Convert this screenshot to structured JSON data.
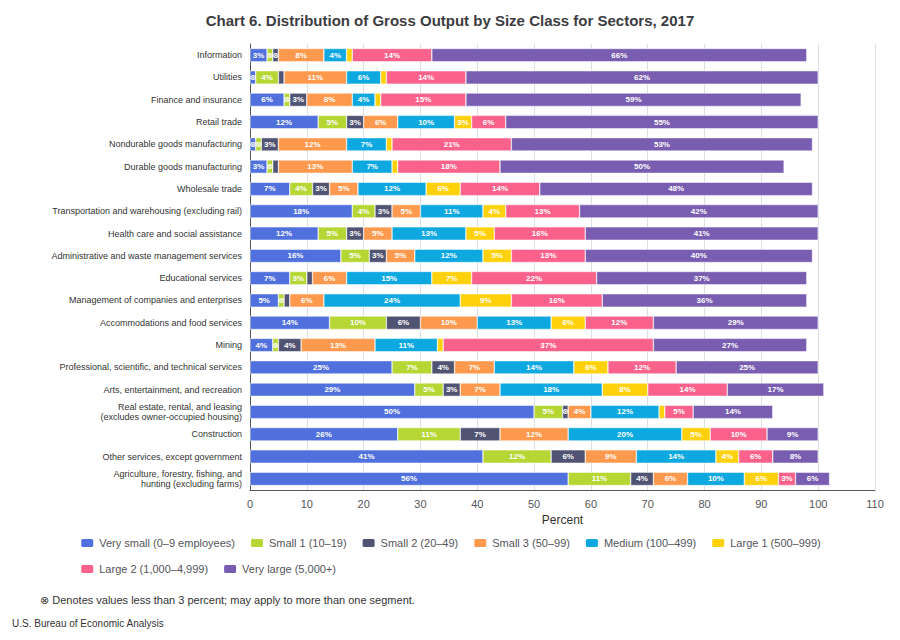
{
  "chart_data": {
    "type": "bar",
    "orientation": "horizontal",
    "stacked": true,
    "title": "Chart 6. Distribution of Gross Output by Size Class for Sectors, 2017",
    "xlabel": "Percent",
    "footnote": "⊗ Denotes values less than 3 percent; may apply to more than one segment.",
    "source": "U.S. Bureau of Economic Analysis",
    "categories": [
      "Agriculture, forestry, fishing, and\nhunting (excluding farms)",
      "Other services, except government",
      "Construction",
      "Real estate, rental, and leasing\n(excludes owner-occupied housing)",
      "Arts, entertainment, and recreation",
      "Professional, scientific, and technical services",
      "Mining",
      "Accommodations and food services",
      "Management of companies and enterprises",
      "Educational services",
      "Administrative and waste management services",
      "Health care and social assistance",
      "Transportation and warehousing (excluding rail)",
      "Wholesale trade",
      "Durable goods manufacturing",
      "Nondurable goods manufacturing",
      "Retail trade",
      "Finance and insurance",
      "Utilities",
      "Information"
    ],
    "series": [
      {
        "name": "Very small (0–9 employees)",
        "values": [
          56,
          41,
          26,
          50,
          29,
          25,
          4,
          14,
          5,
          7,
          16,
          12,
          18,
          7,
          3,
          1,
          12,
          6,
          1,
          3
        ],
        "value_labels": [
          "56%",
          "41%",
          "26%",
          "50%",
          "29%",
          "25%",
          "4%",
          "14%",
          "5%",
          "7%",
          "16%",
          "12%",
          "18%",
          "7%",
          "3%",
          null,
          "12%",
          "6%",
          null,
          "3%"
        ]
      },
      {
        "name": "Small 1 (10–19)",
        "values": [
          11,
          12,
          11,
          5,
          5,
          7,
          1,
          10,
          1,
          3,
          5,
          5,
          4,
          4,
          1,
          1,
          5,
          1,
          4,
          1
        ],
        "value_labels": [
          "11%",
          "12%",
          "11%",
          "5%",
          "5%",
          "7%",
          null,
          "10%",
          null,
          "3%",
          "5%",
          "5%",
          "4%",
          "4%",
          null,
          null,
          "5%",
          null,
          "4%",
          null
        ]
      },
      {
        "name": "Small 2 (20–49)",
        "values": [
          4,
          6,
          7,
          1,
          3,
          4,
          4,
          6,
          1,
          1,
          3,
          3,
          3,
          3,
          1,
          3,
          3,
          3,
          1,
          1
        ],
        "value_labels": [
          "4%",
          "6%",
          "7%",
          null,
          "3%",
          "4%",
          "4%",
          "6%",
          null,
          null,
          "3%",
          "3%",
          "3%",
          "3%",
          null,
          "3%",
          "3%",
          "3%",
          null,
          null
        ]
      },
      {
        "name": "Small 3 (50–99)",
        "values": [
          6,
          9,
          12,
          4,
          7,
          7,
          13,
          10,
          6,
          6,
          5,
          5,
          5,
          5,
          13,
          12,
          6,
          8,
          11,
          8
        ],
        "value_labels": [
          "6%",
          "9%",
          "12%",
          "4%",
          "7%",
          "7%",
          "13%",
          "10%",
          "6%",
          "6%",
          "5%",
          "5%",
          "5%",
          "5%",
          "13%",
          "12%",
          "6%",
          "8%",
          "11%",
          "8%"
        ]
      },
      {
        "name": "Medium (100–499)",
        "values": [
          10,
          14,
          20,
          12,
          18,
          14,
          11,
          13,
          24,
          15,
          12,
          13,
          11,
          12,
          7,
          7,
          10,
          4,
          6,
          4
        ],
        "value_labels": [
          "10%",
          "14%",
          "20%",
          "12%",
          "18%",
          "14%",
          "11%",
          "13%",
          "24%",
          "15%",
          "12%",
          "13%",
          "11%",
          "12%",
          "7%",
          "7%",
          "10%",
          "4%",
          "6%",
          "4%"
        ]
      },
      {
        "name": "Large 1 (500–999)",
        "values": [
          6,
          4,
          5,
          1,
          8,
          6,
          1,
          6,
          9,
          7,
          5,
          5,
          4,
          6,
          1,
          1,
          3,
          1,
          1,
          1
        ],
        "value_labels": [
          "6%",
          "4%",
          "5%",
          null,
          "8%",
          "6%",
          null,
          "6%",
          "9%",
          "7%",
          "5%",
          "5%",
          "4%",
          "6%",
          null,
          null,
          "3%",
          null,
          null,
          null
        ]
      },
      {
        "name": "Large 2 (1,000–4,999)",
        "values": [
          3,
          6,
          10,
          5,
          14,
          12,
          37,
          12,
          16,
          22,
          13,
          16,
          13,
          14,
          18,
          21,
          6,
          15,
          14,
          14
        ],
        "value_labels": [
          "3%",
          "6%",
          "10%",
          "5%",
          "14%",
          "12%",
          "37%",
          "12%",
          "16%",
          "22%",
          "13%",
          "16%",
          "13%",
          "14%",
          "18%",
          "21%",
          "6%",
          "15%",
          "14%",
          "14%"
        ]
      },
      {
        "name": "Very large (5,000+)",
        "values": [
          6,
          8,
          9,
          14,
          17,
          25,
          27,
          29,
          36,
          37,
          40,
          41,
          42,
          48,
          50,
          53,
          55,
          59,
          62,
          66
        ],
        "value_labels": [
          "6%",
          "8%",
          "9%",
          "14%",
          "17%",
          "25%",
          "27%",
          "29%",
          "36%",
          "37%",
          "40%",
          "41%",
          "42%",
          "48%",
          "50%",
          "53%",
          "55%",
          "59%",
          "62%",
          "66%"
        ]
      }
    ],
    "annotations": [
      {
        "text": "⊗",
        "category": "Information",
        "series": "Small 1 (10–19)"
      },
      {
        "text": "⊗",
        "category": "Information",
        "series": "Small 2 (20–49)"
      },
      {
        "text": "⊗",
        "category": "Utilities",
        "series": "Very small (0–9 employees)"
      },
      {
        "text": "⊗",
        "category": "Finance and insurance",
        "series": "Small 1 (10–19)"
      },
      {
        "text": "⊗",
        "category": "Nondurable goods manufacturing",
        "series": "Very small (0–9 employees)"
      },
      {
        "text": "⊗",
        "category": "Nondurable goods manufacturing",
        "series": "Small 1 (10–19)"
      },
      {
        "text": "⊗",
        "category": "Durable goods manufacturing",
        "series": "Small 1 (10–19)"
      },
      {
        "text": "⊗",
        "category": "Management of companies and enterprises",
        "series": "Small 1 (10–19)"
      },
      {
        "text": "⊗",
        "category": "Mining",
        "series": "Small 1 (10–19)"
      },
      {
        "text": "⊗",
        "category": "Real estate, rental, and leasing\n(excludes owner-occupied housing)",
        "series": "Small 2 (20–49)"
      }
    ],
    "data_labels": true,
    "xlim": [
      0,
      110
    ],
    "xticks": [
      0,
      10,
      20,
      30,
      40,
      50,
      60,
      70,
      80,
      90,
      100,
      110
    ],
    "grid": true,
    "legend": "bottom"
  }
}
